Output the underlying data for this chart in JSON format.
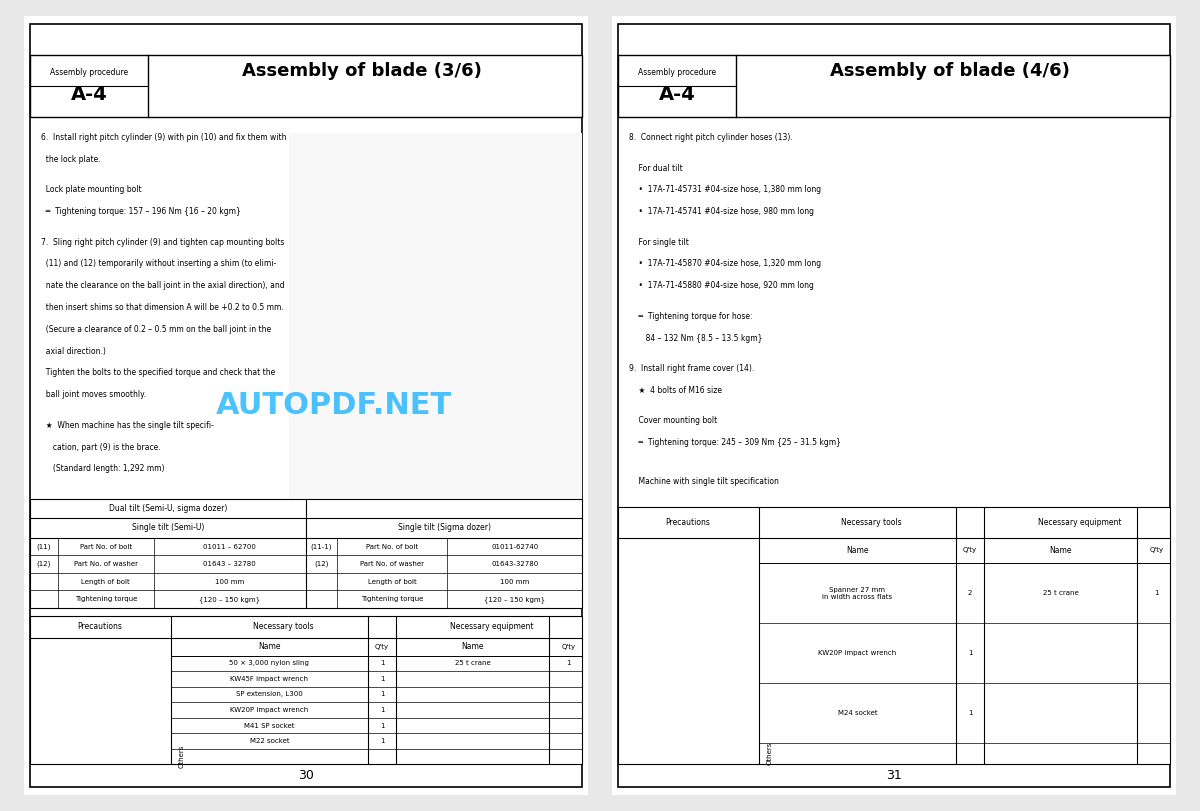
{
  "bg_color": "#e8e8e8",
  "page_bg": "#ffffff",
  "border_color": "#000000",
  "header_bg": "#ffffff",
  "left_page_num": "30",
  "right_page_num": "31",
  "left_title": "Assembly of blade (3/6)",
  "right_title": "Assembly of blade (4/6)",
  "proc_label": "Assembly procedure",
  "proc_code": "A-4",
  "watermark": "AUTOPDF.NET",
  "watermark_color": "#00aaff",
  "left_text_block": [
    "6.  Install right pitch cylinder (9) with pin (10) and fix them with",
    "    the lock plate.",
    "",
    "    Lock plate mounting bolt",
    "    ═  Tightening torque: 157 – 196 Nm {16 – 20 kgm}",
    "",
    "7.  Sling right pitch cylinder (9) and tighten cap mounting bolts",
    "    (11) and (12) temporarily without inserting a shim (to elimi-",
    "    nate the clearance on the ball joint in the axial direction), and",
    "    then insert shims so that dimension A will be +0.2 to 0.5 mm.",
    "    (Secure a clearance of 0.2 – 0.5 mm on the ball joint in the",
    "    axial direction.)",
    "    Tighten the bolts to the specified torque and check that the",
    "    ball joint moves smoothly.",
    "",
    "    ★  When machine has the single tilt specifi-",
    "       cation, part (9) is the brace.",
    "       (Standard length: 1,292 mm)"
  ],
  "right_text_block": [
    "8.  Connect right pitch cylinder hoses (13).",
    "",
    "    For dual tilt",
    "    •  17A-71-45731 #04-size hose, 1,380 mm long",
    "    •  17A-71-45741 #04-size hose, 980 mm long",
    "",
    "    For single tilt",
    "    •  17A-71-45870 #04-size hose, 1,320 mm long",
    "    •  17A-71-45880 #04-size hose, 920 mm long",
    "",
    "    ═  Tightening torque for hose:",
    "       84 – 132 Nm {8.5 – 13.5 kgm}",
    "",
    "9.  Install right frame cover (14).",
    "    ★  4 bolts of M16 size",
    "",
    "    Cover mounting bolt",
    "    ═  Tightening torque: 245 – 309 Nm {25 – 31.5 kgm}",
    "",
    "",
    "    Machine with single tilt specification"
  ],
  "left_parts_table_header1": "Dual tilt (Semi-U, sigma dozer)",
  "left_parts_table_header2": "Single tilt (Semi-U)",
  "left_parts_table_header3": "Single tilt (Sigma dozer)",
  "left_parts_rows_left": [
    [
      "(11)",
      "Part No. of bolt",
      "01011 – 62700"
    ],
    [
      "(12)",
      "Part No. of washer",
      "01643 – 32780"
    ],
    [
      "",
      "Length of bolt",
      "100 mm"
    ],
    [
      "",
      "Tightening torque",
      "{120 – 150 kgm}"
    ]
  ],
  "left_parts_rows_right": [
    [
      "(11-1)",
      "Part No. of bolt",
      "01011-62740"
    ],
    [
      "(12)",
      "Part No. of washer",
      "01643-32780"
    ],
    [
      "",
      "Length of bolt",
      "100 mm"
    ],
    [
      "",
      "Tightening torque",
      "{120 – 150 kgm}"
    ]
  ],
  "left_tools_header": [
    "Precautions",
    "Necessary tools",
    "",
    "Necessary equipment",
    ""
  ],
  "left_tools_name_header": "Name",
  "left_tools_qty_header": "Q'ty",
  "left_equip_name_header": "Name",
  "left_equip_qty_header": "Q'ty",
  "left_tools": [
    [
      "50 × 3,000 nylon sling",
      "1",
      "25 t crane",
      "1"
    ],
    [
      "KW45F impact wrench",
      "1",
      "",
      ""
    ],
    [
      "SP extension, L300",
      "1",
      "",
      ""
    ],
    [
      "KW20P impact wrench",
      "1",
      "",
      ""
    ],
    [
      "M41 SP socket",
      "1",
      "",
      ""
    ],
    [
      "M22 socket",
      "1",
      "",
      ""
    ]
  ],
  "left_others_label": "Others",
  "right_tools_header": [
    "Precautions",
    "Necessary tools",
    "",
    "Necessary equipment",
    ""
  ],
  "right_tools": [
    [
      "Spanner 27 mm\nin width across flats",
      "2",
      "25 t crane",
      "1"
    ],
    [
      "KW20P impact wrench",
      "1",
      "",
      ""
    ],
    [
      "M24 socket",
      "1",
      "",
      ""
    ]
  ],
  "right_others_label": "Others"
}
